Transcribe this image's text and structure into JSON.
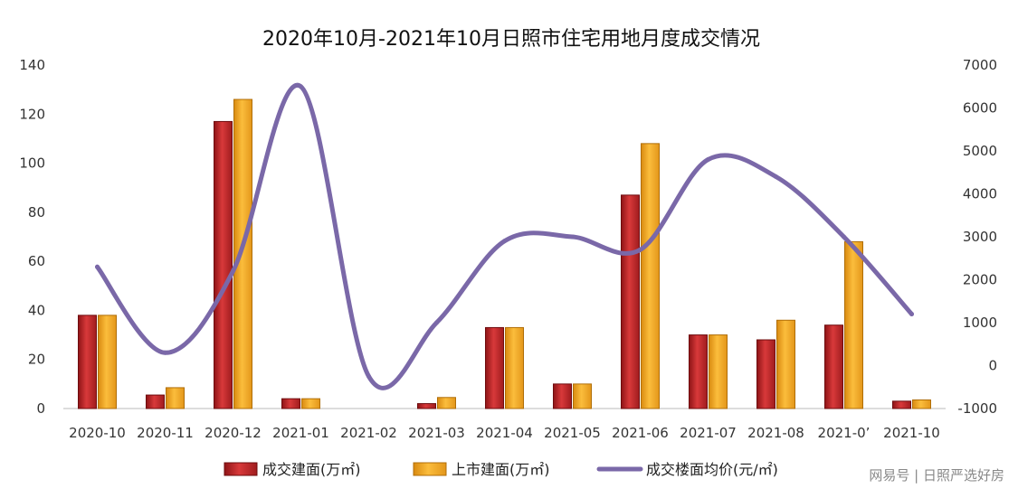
{
  "chart_data": {
    "type": "bar",
    "title": "2020年10月-2021年10月日照市住宅用地月度成交情况",
    "categories": [
      "2020-10",
      "2020-11",
      "2020-12",
      "2021-01",
      "2021-02",
      "2021-03",
      "2021-04",
      "2021-05",
      "2021-06",
      "2021-07",
      "2021-08",
      "2021-09",
      "2021-10"
    ],
    "category_labels": [
      "2020-10",
      "2020-11",
      "2020-12",
      "2021-01",
      "2021-02",
      "2021-03",
      "2021-04",
      "2021-05",
      "2021-06",
      "2021-07",
      "2021-08",
      "2021-0’",
      "2021-10"
    ],
    "ylim_left": [
      0,
      140
    ],
    "yticks_left": [
      0,
      20,
      40,
      60,
      80,
      100,
      120,
      140
    ],
    "ylim_right": [
      -1000,
      7000
    ],
    "yticks_right": [
      -1000,
      0,
      1000,
      2000,
      3000,
      4000,
      5000,
      6000,
      7000
    ],
    "grid": false,
    "legend_position": "bottom",
    "series": [
      {
        "name": "成交建面(万㎡)",
        "type": "bar",
        "axis": "left",
        "color": "#c0282a",
        "values": [
          38,
          5.5,
          117,
          4,
          0,
          2,
          33,
          10,
          87,
          30,
          28,
          34,
          3
        ]
      },
      {
        "name": "上市建面(万㎡)",
        "type": "bar",
        "axis": "left",
        "color": "#f5a623",
        "values": [
          38,
          8.5,
          126,
          4,
          0,
          4.5,
          33,
          10,
          108,
          30,
          36,
          68,
          3.5
        ]
      },
      {
        "name": "成交楼面均价(元/㎡)",
        "type": "line",
        "axis": "right",
        "color": "#7a68a8",
        "values": [
          2300,
          300,
          2200,
          6500,
          -250,
          1000,
          2900,
          3000,
          2700,
          4800,
          4400,
          3000,
          1200
        ]
      }
    ]
  },
  "watermark": {
    "text": "网易号 | 日照严选好房"
  }
}
